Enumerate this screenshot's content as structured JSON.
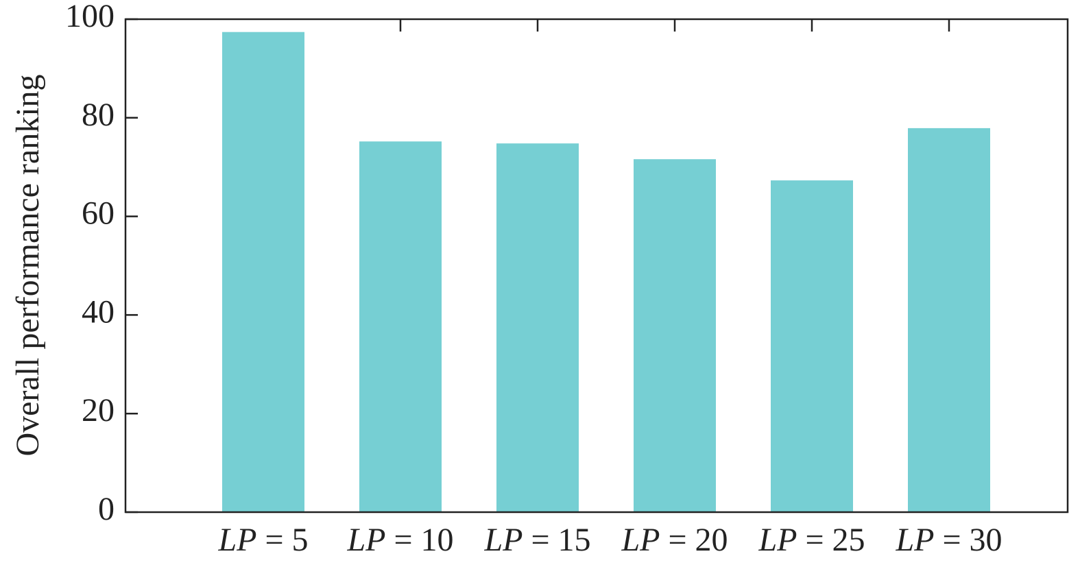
{
  "chart_data": {
    "type": "bar",
    "y_label": "Overall performance ranking",
    "categories": [
      "LP = 5",
      "LP = 10",
      "LP = 15",
      "LP = 20",
      "LP = 25",
      "LP = 30"
    ],
    "values": [
      97.4,
      75.2,
      74.8,
      71.6,
      67.3,
      77.9
    ],
    "color": "#76cfd3",
    "ylim": [
      0,
      100
    ],
    "yticks": [
      0,
      20,
      40,
      60,
      80,
      100
    ],
    "grid": false
  }
}
